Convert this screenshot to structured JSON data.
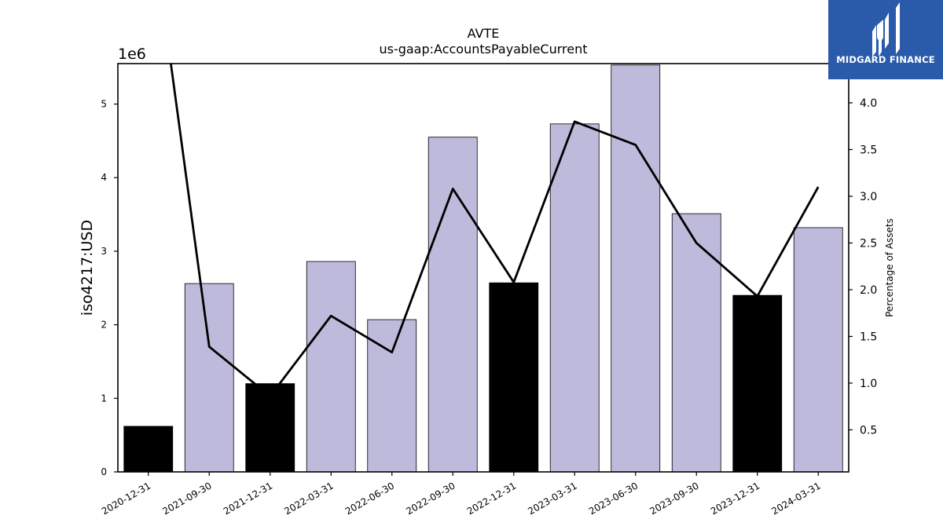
{
  "chart_data": {
    "type": "bar",
    "title": "AVTE",
    "subtitle": "us-gaap:AccountsPayableCurrent",
    "ylabel": "iso4217:USD",
    "y2label": "Percentage of Assets",
    "y_multiplier": "1e6",
    "ylim": [
      0,
      5.55
    ],
    "y2lim": [
      0.05,
      4.42
    ],
    "yticks": [
      "0",
      "1",
      "2",
      "3",
      "4",
      "5"
    ],
    "y2ticks": [
      "0.5",
      "1.0",
      "1.5",
      "2.0",
      "2.5",
      "3.0",
      "3.5",
      "4.0"
    ],
    "categories": [
      "2020-12-31",
      "2021-09-30",
      "2021-12-31",
      "2022-03-31",
      "2022-06-30",
      "2022-09-30",
      "2022-12-31",
      "2023-03-31",
      "2023-06-30",
      "2023-09-30",
      "2023-12-31",
      "2024-03-31"
    ],
    "series": [
      {
        "type": "bar",
        "values": [
          0.62,
          2.56,
          1.2,
          2.86,
          2.07,
          4.55,
          2.57,
          4.73,
          5.53,
          3.51,
          2.4,
          3.32
        ],
        "colors": [
          "#000000",
          "#bebadb",
          "#000000",
          "#bebadb",
          "#bebadb",
          "#bebadb",
          "#000000",
          "#bebadb",
          "#bebadb",
          "#bebadb",
          "#000000",
          "#bebadb"
        ]
      },
      {
        "type": "line",
        "axis": "right",
        "color": "#000000",
        "values": [
          6.2,
          1.39,
          0.86,
          1.72,
          1.33,
          3.08,
          2.08,
          3.8,
          3.55,
          2.5,
          1.93,
          3.1
        ]
      }
    ],
    "grid": false
  },
  "logo": {
    "text": "MIDGARD FINANCE",
    "bg_color": "#2a5bab"
  }
}
